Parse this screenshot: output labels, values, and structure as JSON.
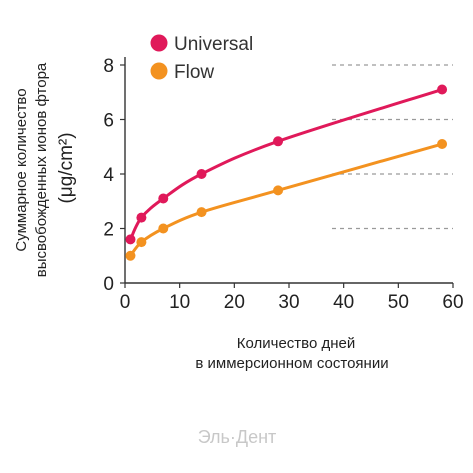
{
  "chart_data": {
    "type": "line",
    "xlabel": [
      "Количество дней",
      "в иммерсионном состоянии"
    ],
    "ylabel": [
      "Суммарное количество",
      "высвобожденных ионов фтора",
      "(μg/cm²)"
    ],
    "xlim": [
      0,
      60
    ],
    "ylim": [
      0,
      8
    ],
    "xticks": [
      0,
      10,
      20,
      30,
      40,
      50,
      60
    ],
    "yticks": [
      0,
      2,
      4,
      6,
      8
    ],
    "grid": "horizontal-dashed",
    "legend": "top-left",
    "series": [
      {
        "name": "Universal",
        "color": "#e0195a",
        "points": [
          [
            1,
            1.6
          ],
          [
            3,
            2.4
          ],
          [
            7,
            3.1
          ],
          [
            14,
            4.0
          ],
          [
            28,
            5.2
          ],
          [
            58,
            7.1
          ]
        ]
      },
      {
        "name": "Flow",
        "color": "#f39220",
        "points": [
          [
            1,
            1.0
          ],
          [
            3,
            1.5
          ],
          [
            7,
            2.0
          ],
          [
            14,
            2.6
          ],
          [
            28,
            3.4
          ],
          [
            58,
            5.1
          ]
        ]
      }
    ]
  },
  "watermark": "Эль·Дент"
}
